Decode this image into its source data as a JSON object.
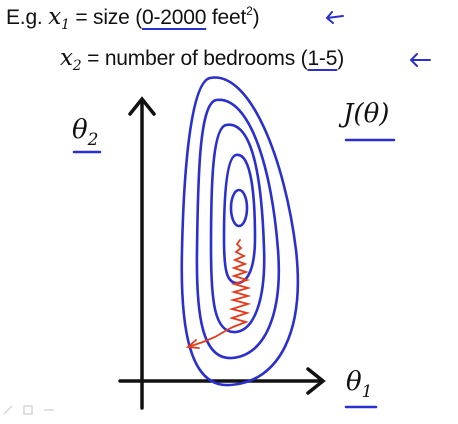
{
  "header": {
    "line1": {
      "prefix": "E.g.",
      "var_name": "x",
      "var_sub": "1",
      "text_eq": " = size (",
      "range": "0-2000",
      "unit": " feet",
      "unit_sup": "2",
      "close": ")"
    },
    "line2": {
      "var_name": "x",
      "var_sub": "2",
      "text_eq": " = number of bedrooms (",
      "range": "1-5",
      "close": ")"
    }
  },
  "diagram": {
    "y_axis_label": {
      "name": "θ",
      "sub": "2"
    },
    "x_axis_label": {
      "name": "θ",
      "sub": "1"
    },
    "cost_label": "J(θ)",
    "contour_color": "#2a2fd0",
    "path_color": "#e53a1a",
    "axis_color": "#111111"
  }
}
